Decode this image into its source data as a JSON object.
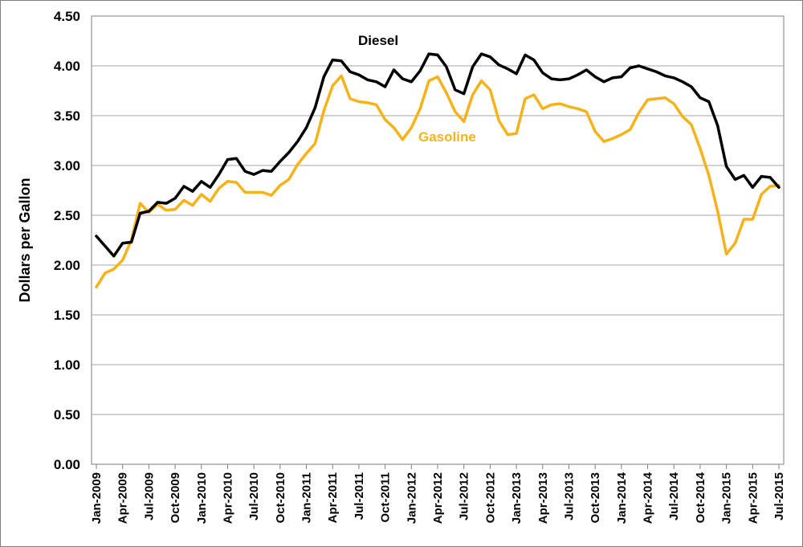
{
  "chart_data": {
    "type": "line",
    "title": "",
    "xlabel": "",
    "ylabel": "Dollars per Gallon",
    "ylim": [
      0,
      4.5
    ],
    "yticks": [
      "0.00",
      "0.50",
      "1.00",
      "1.50",
      "2.00",
      "2.50",
      "3.00",
      "3.50",
      "4.00",
      "4.50"
    ],
    "grid": "horizontal",
    "legend": "inline labels",
    "x_start": "Jan-2009",
    "x_end": "Aug-2015",
    "x_tick_labels": [
      "Jan-2009",
      "Apr-2009",
      "Jul-2009",
      "Oct-2009",
      "Jan-2010",
      "Apr-2010",
      "Jul-2010",
      "Oct-2010",
      "Jan-2011",
      "Apr-2011",
      "Jul-2011",
      "Oct-2011",
      "Jan-2012",
      "Apr-2012",
      "Jul-2012",
      "Oct-2012",
      "Jan-2013",
      "Apr-2013",
      "Jul-2013",
      "Oct-2013",
      "Jan-2014",
      "Apr-2014",
      "Jul-2014",
      "Oct-2014",
      "Jan-2015",
      "Apr-2015",
      "Jul-2015"
    ],
    "series": [
      {
        "name": "Diesel",
        "color": "#000000",
        "values": [
          2.29,
          2.19,
          2.09,
          2.22,
          2.23,
          2.52,
          2.54,
          2.63,
          2.62,
          2.67,
          2.79,
          2.74,
          2.84,
          2.78,
          2.91,
          3.06,
          3.07,
          2.94,
          2.91,
          2.95,
          2.94,
          3.04,
          3.13,
          3.24,
          3.38,
          3.58,
          3.89,
          4.06,
          4.05,
          3.94,
          3.91,
          3.86,
          3.84,
          3.79,
          3.96,
          3.87,
          3.84,
          3.95,
          4.12,
          4.11,
          3.99,
          3.76,
          3.72,
          3.99,
          4.12,
          4.09,
          4.01,
          3.97,
          3.92,
          4.11,
          4.06,
          3.93,
          3.87,
          3.86,
          3.87,
          3.91,
          3.96,
          3.89,
          3.84,
          3.88,
          3.89,
          3.98,
          4.0,
          3.97,
          3.94,
          3.9,
          3.88,
          3.84,
          3.79,
          3.68,
          3.64,
          3.4,
          2.99,
          2.86,
          2.9,
          2.78,
          2.89,
          2.88,
          2.78
        ]
      },
      {
        "name": "Gasoline",
        "color": "#F5B21A",
        "values": [
          1.78,
          1.92,
          1.96,
          2.05,
          2.25,
          2.62,
          2.53,
          2.61,
          2.55,
          2.56,
          2.65,
          2.6,
          2.71,
          2.64,
          2.77,
          2.84,
          2.83,
          2.73,
          2.73,
          2.73,
          2.7,
          2.8,
          2.86,
          3.01,
          3.12,
          3.22,
          3.55,
          3.8,
          3.9,
          3.67,
          3.64,
          3.63,
          3.61,
          3.46,
          3.38,
          3.26,
          3.38,
          3.57,
          3.85,
          3.89,
          3.73,
          3.54,
          3.44,
          3.71,
          3.85,
          3.76,
          3.45,
          3.31,
          3.32,
          3.67,
          3.71,
          3.57,
          3.61,
          3.62,
          3.59,
          3.57,
          3.54,
          3.34,
          3.24,
          3.27,
          3.31,
          3.36,
          3.53,
          3.66,
          3.67,
          3.68,
          3.62,
          3.49,
          3.41,
          3.17,
          2.9,
          2.54,
          2.11,
          2.22,
          2.46,
          2.46,
          2.71,
          2.79,
          2.8
        ]
      }
    ]
  }
}
